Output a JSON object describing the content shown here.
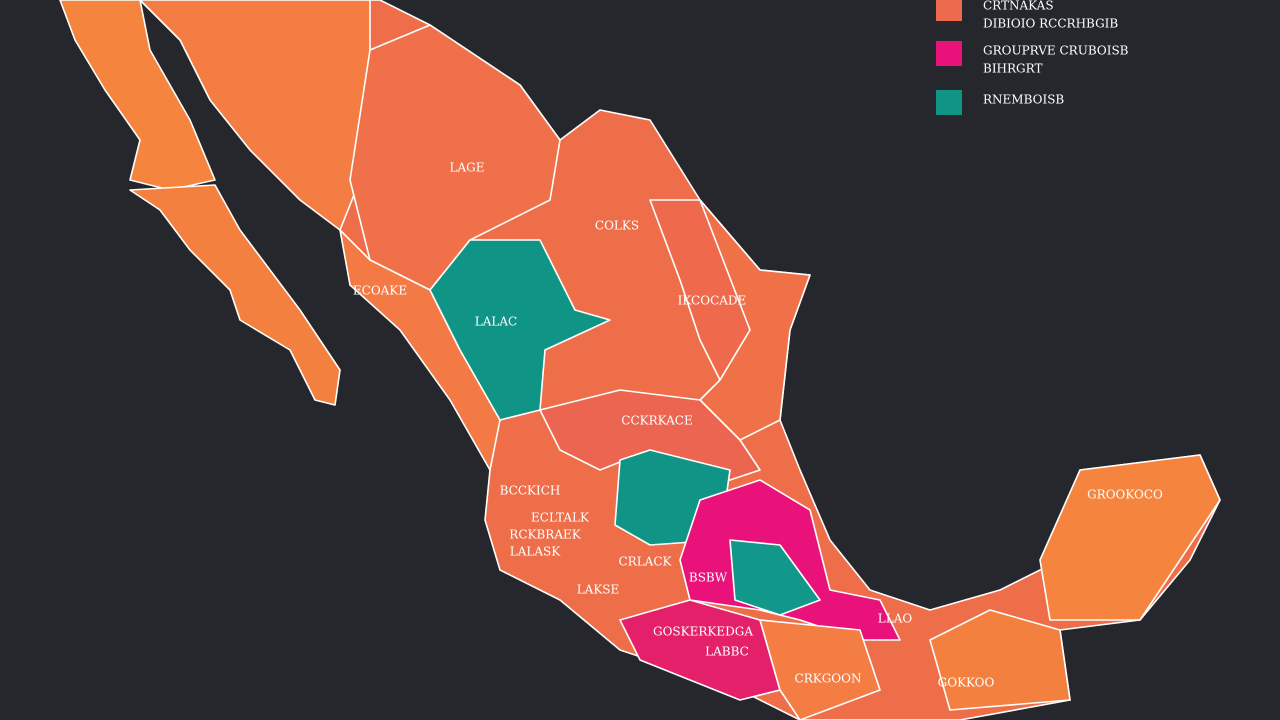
{
  "legend": [
    {
      "color": "#ee6a4e",
      "lines": [
        "CRTNAKAS",
        "DIBIOIO RCCRHBGIB"
      ]
    },
    {
      "color": "#e8127a",
      "lines": [
        "GROUPRVE CRUBOISB",
        "BIHRGRT"
      ]
    },
    {
      "color": "#109486",
      "lines": [
        "RNEMBOISB"
      ]
    }
  ],
  "regions": [
    {
      "label": "LAGE"
    },
    {
      "label": "COLKS"
    },
    {
      "label": "ECOAKE"
    },
    {
      "label": "LALAC"
    },
    {
      "label": "IKCOCADE"
    },
    {
      "label": "CCKRKACE"
    },
    {
      "label": "BCCKICH"
    },
    {
      "label": "ECLTALK"
    },
    {
      "label": "RCKBRAEK"
    },
    {
      "label": "LALASK"
    },
    {
      "label": "CRLACK"
    },
    {
      "label": "BSBW"
    },
    {
      "label": "LAKSE"
    },
    {
      "label": "GOSKERKEDGA"
    },
    {
      "label": "LABBC"
    },
    {
      "label": "LLAO"
    },
    {
      "label": "CRKGOON"
    },
    {
      "label": "GOKKOO"
    },
    {
      "label": "GROOKOCO"
    }
  ]
}
